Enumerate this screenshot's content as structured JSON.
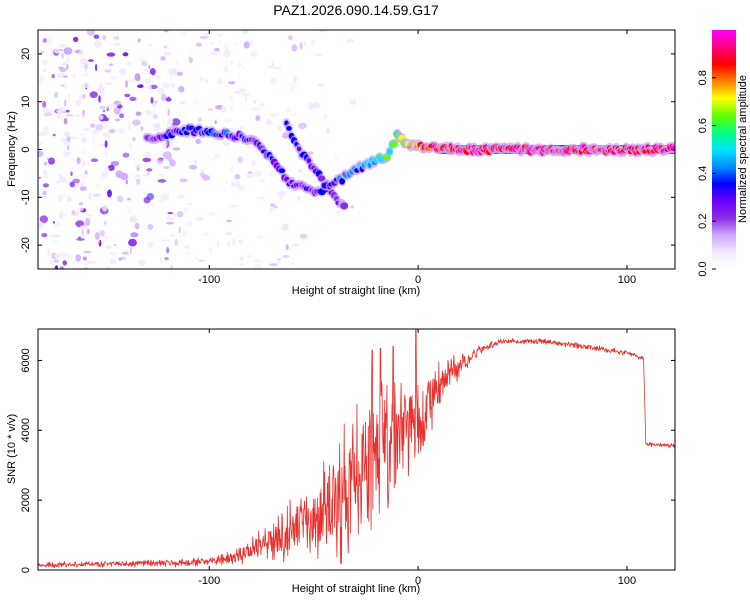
{
  "title": "PAZ1.2026.090.14.59.G17",
  "colors": {
    "snr_line": "#e8302c",
    "frame": "#000000",
    "colormap": [
      "#ffffff",
      "#f3e8ff",
      "#cfa6ff",
      "#8a2be2",
      "#6a00ff",
      "#0000ff",
      "#0090ff",
      "#00e5ff",
      "#00ff80",
      "#66ff00",
      "#ffff00",
      "#ff8000",
      "#ff0000",
      "#ff007f",
      "#ff00ff"
    ]
  },
  "chart_data": [
    {
      "type": "heatmap",
      "name": "spectrogram",
      "xlabel": "Height of straight line (km)",
      "ylabel": "Frequency (Hz)",
      "xlim": [
        -182,
        123
      ],
      "ylim": [
        -25,
        25
      ],
      "xticks": [
        -100,
        0,
        100
      ],
      "yticks": [
        20,
        10,
        0,
        -10,
        -20
      ],
      "colorbar": {
        "label": "Normalized spectral amplitude",
        "ticks": [
          "0.0",
          "0.2",
          "0.4",
          "0.6",
          "0.8"
        ],
        "range": [
          0,
          1
        ]
      },
      "ridge": {
        "x": [
          -130,
          -120,
          -110,
          -100,
          -90,
          -80,
          -70,
          -62,
          -55,
          -48,
          -42,
          -36,
          -30,
          -24,
          -18,
          -14,
          -10,
          -6,
          -2,
          2,
          10,
          20,
          40,
          60,
          80,
          100,
          123
        ],
        "freq": [
          2,
          3,
          4,
          4,
          3,
          2,
          -2,
          -7,
          -8,
          -9,
          -7,
          -6,
          -4,
          -3,
          -2,
          -1,
          3,
          1,
          1,
          0.5,
          0.3,
          0,
          0,
          0,
          0,
          0,
          0
        ],
        "amplitude": [
          0.25,
          0.3,
          0.35,
          0.35,
          0.35,
          0.3,
          0.3,
          0.3,
          0.3,
          0.3,
          0.3,
          0.35,
          0.4,
          0.5,
          0.55,
          0.55,
          0.6,
          0.7,
          0.75,
          0.8,
          0.85,
          0.9,
          0.9,
          0.9,
          0.9,
          0.9,
          0.9
        ]
      },
      "branch": {
        "x": [
          -63,
          -60,
          -56,
          -50,
          -45,
          -40,
          -35
        ],
        "freq": [
          5,
          3,
          -1,
          -4,
          -7,
          -10,
          -12
        ],
        "amplitude": [
          0.35,
          0.3,
          0.3,
          0.3,
          0.3,
          0.25,
          0.2
        ]
      }
    },
    {
      "type": "line",
      "name": "snr",
      "xlabel": "Height of straight line (km)",
      "ylabel": "SNR (10 * v/v)",
      "xlim": [
        -182,
        123
      ],
      "ylim": [
        0,
        6900
      ],
      "xticks": [
        -100,
        0,
        100
      ],
      "yticks": [
        0,
        2000,
        4000,
        6000
      ],
      "envelope": {
        "x": [
          -182,
          -140,
          -120,
          -100,
          -90,
          -80,
          -70,
          -60,
          -50,
          -40,
          -30,
          -25,
          -20,
          -10,
          0,
          10,
          20,
          30,
          40,
          60,
          80,
          100,
          108,
          109,
          123
        ],
        "mean": [
          150,
          180,
          200,
          250,
          350,
          550,
          900,
          1200,
          1400,
          1900,
          2500,
          3200,
          3400,
          3800,
          4300,
          5200,
          5900,
          6300,
          6550,
          6550,
          6400,
          6200,
          6050,
          3600,
          3550
        ],
        "noise": [
          80,
          90,
          110,
          120,
          200,
          350,
          600,
          900,
          1100,
          1500,
          2200,
          2200,
          2200,
          1600,
          1200,
          700,
          350,
          150,
          80,
          80,
          80,
          80,
          80,
          70,
          60
        ]
      },
      "spikes": [
        {
          "x": -22,
          "y": 6300
        },
        {
          "x": -18,
          "y": 6350
        },
        {
          "x": -12,
          "y": 6400
        },
        {
          "x": -1,
          "y": 6900
        }
      ]
    }
  ]
}
